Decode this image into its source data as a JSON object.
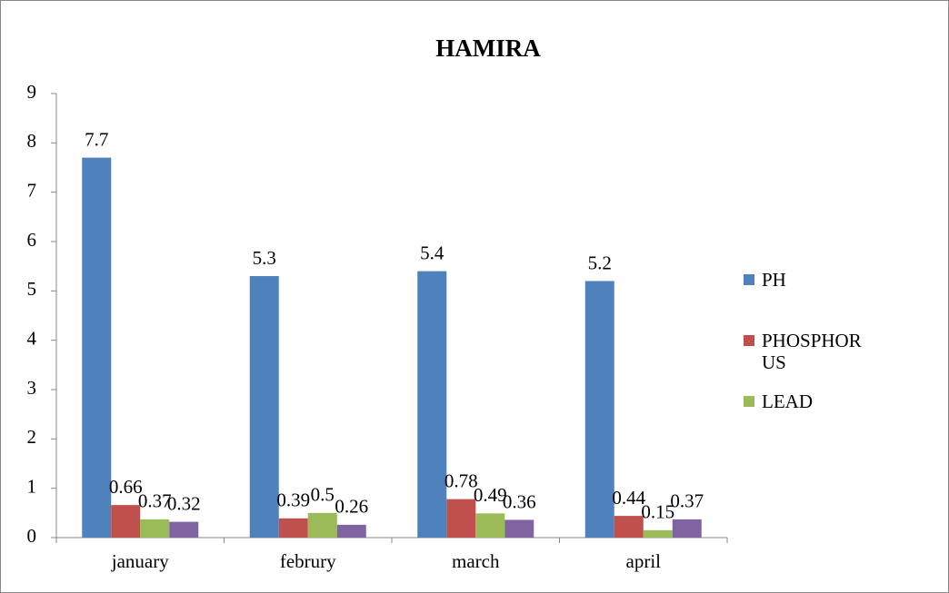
{
  "chart_data": {
    "type": "bar",
    "title": "HAMIRA",
    "categories": [
      "january",
      "februry",
      "march",
      "april"
    ],
    "series": [
      {
        "name": "PH",
        "color": "#4f81bd",
        "values": [
          7.7,
          5.3,
          5.4,
          5.2
        ]
      },
      {
        "name": "PHOSPHORUS",
        "color": "#c0504d",
        "values": [
          0.66,
          0.39,
          0.78,
          0.44
        ]
      },
      {
        "name": "LEAD",
        "color": "#9bbb59",
        "values": [
          0.37,
          0.5,
          0.49,
          0.15
        ]
      },
      {
        "color": "#8064a2",
        "values": [
          0.32,
          0.26,
          0.36,
          0.37
        ]
      }
    ],
    "ylim": [
      0,
      9
    ],
    "yticks": [
      0,
      1,
      2,
      3,
      4,
      5,
      6,
      7,
      8,
      9
    ],
    "grid": false,
    "legend": "right"
  }
}
